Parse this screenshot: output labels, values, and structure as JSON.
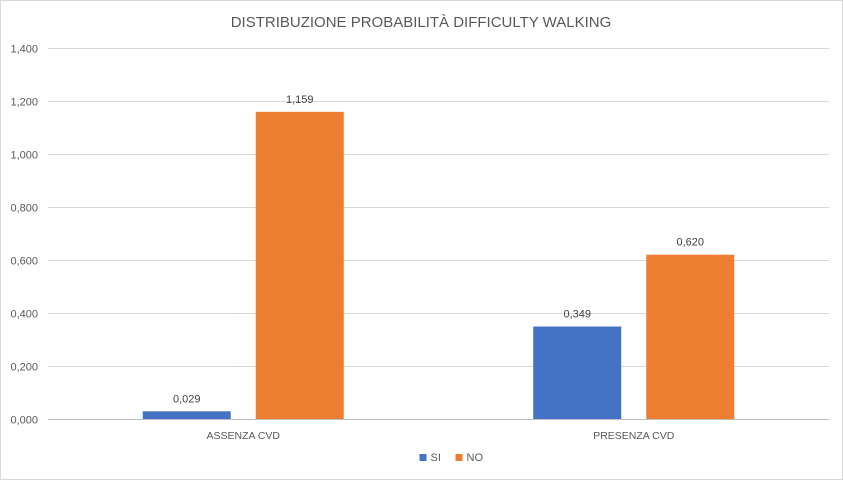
{
  "chart_data": {
    "type": "bar",
    "title": "DISTRIBUZIONE PROBABILITÀ DIFFICULTY WALKING",
    "categories": [
      "ASSENZA CVD",
      "PRESENZA CVD"
    ],
    "series": [
      {
        "name": "SI",
        "values": [
          0.029,
          0.349
        ],
        "value_labels": [
          "0,029",
          "0,349"
        ],
        "color": "#4472C4"
      },
      {
        "name": "NO",
        "values": [
          1.159,
          0.62
        ],
        "value_labels": [
          "1,159",
          "0,620"
        ],
        "color": "#ED7D31"
      }
    ],
    "ylim": [
      0,
      1.4
    ],
    "yticks": [
      0,
      0.2,
      0.4,
      0.6,
      0.8,
      1.0,
      1.2,
      1.4
    ],
    "ytick_labels": [
      "0,000",
      "0,200",
      "0,400",
      "0,600",
      "0,800",
      "1,000",
      "1,200",
      "1,400"
    ],
    "grid": true,
    "legend_position": "bottom"
  }
}
